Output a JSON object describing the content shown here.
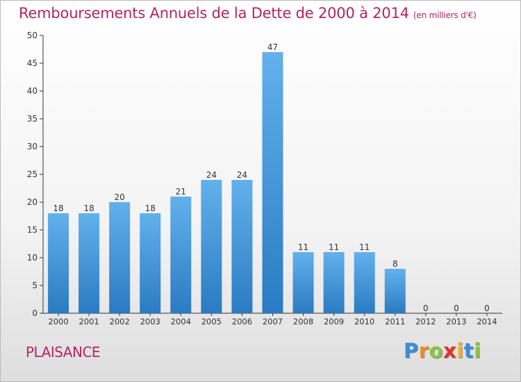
{
  "title": "Remboursements Annuels de la Dette de 2000 à 2014",
  "subtitle": "(en milliers d'€)",
  "location_label": "PLAISANCE",
  "logo": {
    "text": "Proxiti",
    "letters": [
      {
        "ch": "P",
        "color": "#3a8fd6"
      },
      {
        "ch": "r",
        "color": "#f28c1e"
      },
      {
        "ch": "o",
        "color": "#8cc43f"
      },
      {
        "ch": "x",
        "color": "#e2312d"
      },
      {
        "ch": "i",
        "color": "#f2b01e"
      },
      {
        "ch": "t",
        "color": "#3a8fd6"
      },
      {
        "ch": "i",
        "color": "#8cc43f"
      }
    ]
  },
  "colors": {
    "bar_top": "#63b1ec",
    "bar_bottom": "#2a7bc2",
    "text_accent": "#b2255f",
    "axis": "#333333"
  },
  "chart_data": {
    "type": "bar",
    "title": "Remboursements Annuels de la Dette de 2000 à 2014",
    "subtitle": "(en milliers d'€)",
    "categories": [
      "2000",
      "2001",
      "2002",
      "2003",
      "2004",
      "2005",
      "2006",
      "2007",
      "2008",
      "2009",
      "2010",
      "2011",
      "2012",
      "2013",
      "2014"
    ],
    "values": [
      18,
      18,
      20,
      18,
      21,
      24,
      24,
      47,
      11,
      11,
      11,
      8,
      0,
      0,
      0
    ],
    "ylim": [
      0,
      50
    ],
    "yticks": [
      0,
      5,
      10,
      15,
      20,
      25,
      30,
      35,
      40,
      45,
      50
    ],
    "grid": false,
    "legend": "none"
  }
}
